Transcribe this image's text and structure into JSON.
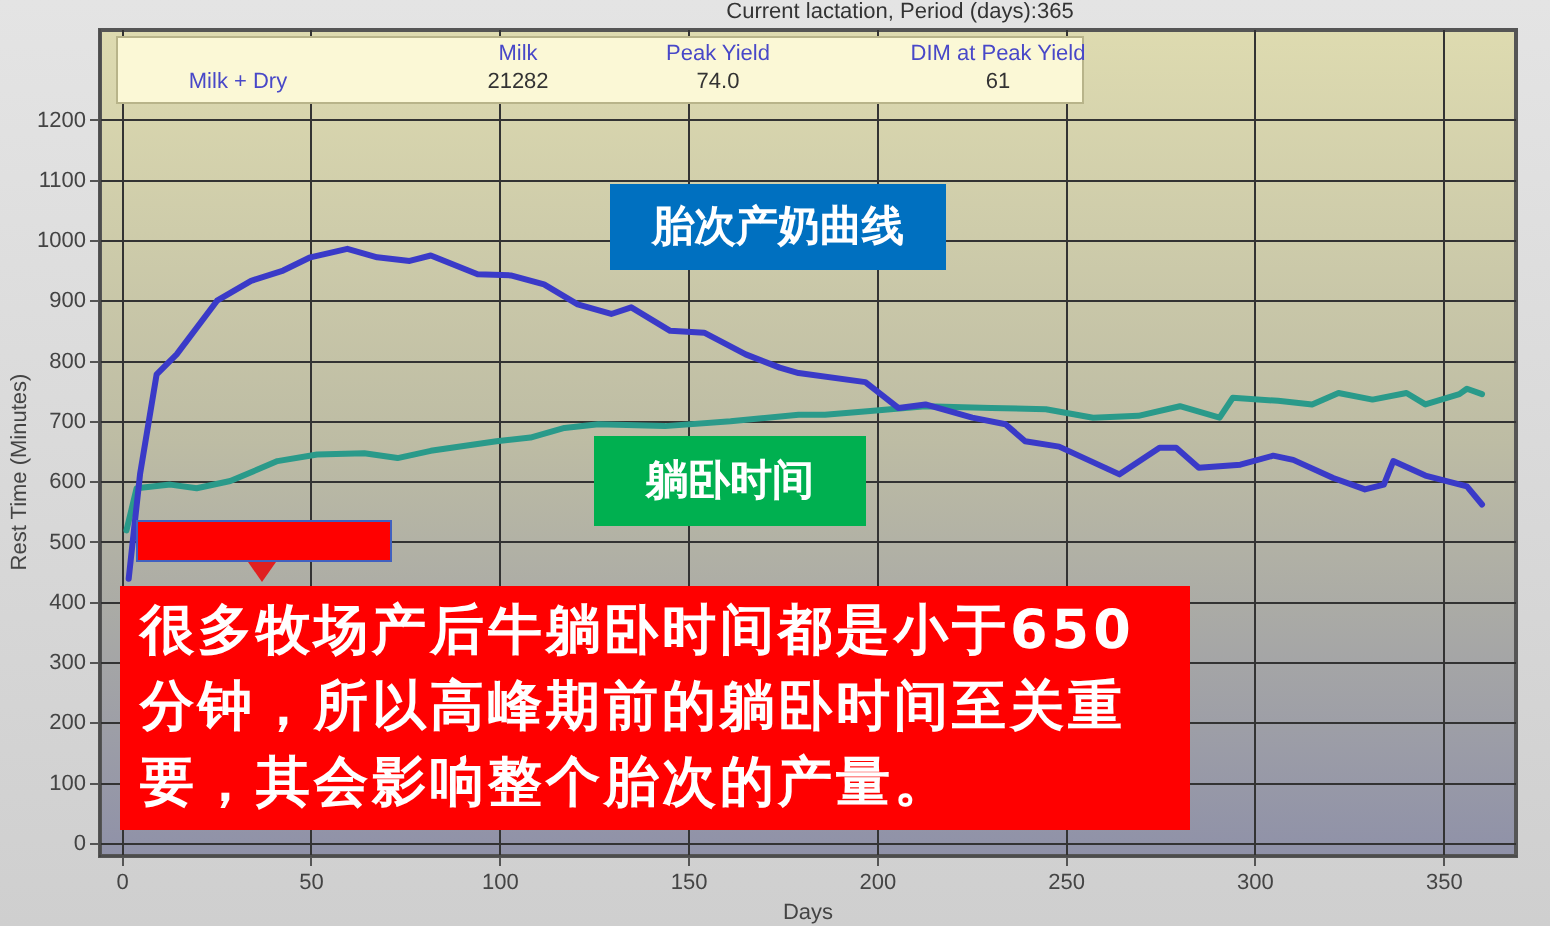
{
  "chart_data": {
    "type": "line",
    "title": "Current lactation, Period (days):365",
    "xlabel": "Days",
    "ylabel": "Rest Time (Minutes)",
    "xlim": [
      -6,
      369
    ],
    "xticks": [
      0,
      50,
      100,
      150,
      200,
      250,
      300,
      350
    ],
    "ylim": [
      -20,
      1350
    ],
    "yticks": [
      0,
      100,
      200,
      300,
      400,
      500,
      600,
      700,
      800,
      900,
      1000,
      1100,
      1200
    ],
    "grid": true,
    "legend": false,
    "marker": "none",
    "series": [
      {
        "name": "胎次产奶曲线",
        "color": "#3a3ac8",
        "x": [
          1.6,
          4.6,
          9,
          14.3,
          25,
          34,
          42.5,
          49.7,
          59.5,
          67.4,
          76,
          81.6,
          94,
          102.8,
          111.6,
          120.5,
          129.4,
          134.7,
          145,
          154,
          165,
          174,
          179,
          196.7,
          205.5,
          212.6,
          225,
          233.8,
          239,
          248,
          264,
          274.6,
          279,
          285,
          296,
          304.7,
          310,
          320.6,
          329,
          334,
          336.5,
          345,
          356,
          360
        ],
        "values": [
          440,
          613,
          779,
          812,
          901,
          934,
          951,
          973,
          987,
          973,
          967,
          976,
          945,
          943,
          928,
          895,
          879,
          890,
          851,
          848,
          812,
          790,
          781,
          766,
          723,
          729,
          707,
          696,
          668,
          659,
          613,
          657,
          657,
          624,
          629,
          644,
          637,
          607,
          588,
          596,
          635,
          611,
          593,
          563
        ]
      },
      {
        "name": "躺卧时间",
        "color": "#2a9a8a",
        "x": [
          1,
          3.7,
          12.6,
          19.6,
          28.5,
          41,
          51.5,
          64,
          72.8,
          81.6,
          99,
          108,
          117,
          126,
          143.6,
          161,
          179,
          186,
          198,
          212.6,
          230,
          244.5,
          257,
          269,
          280,
          290.5,
          294,
          306,
          315,
          322,
          331,
          340,
          345,
          354,
          356,
          360
        ],
        "values": [
          520,
          590,
          596,
          590,
          602,
          635,
          646,
          648,
          640,
          652,
          668,
          674,
          690,
          696,
          693,
          701,
          712,
          712,
          718,
          726,
          723,
          721,
          707,
          710,
          726,
          707,
          740,
          735,
          729,
          748,
          737,
          748,
          729,
          746,
          755,
          746
        ]
      }
    ],
    "annotations": [
      "Milk",
      "Peak Yield",
      "DIM at Peak Yield",
      "Milk + Dry",
      "21282",
      "74.0",
      "61",
      "很多牧场产后牛躺卧时间都是小于650分钟，所以高峰期前的躺卧时间至关重要，其会影响整个胎次的产量。"
    ]
  }
}
